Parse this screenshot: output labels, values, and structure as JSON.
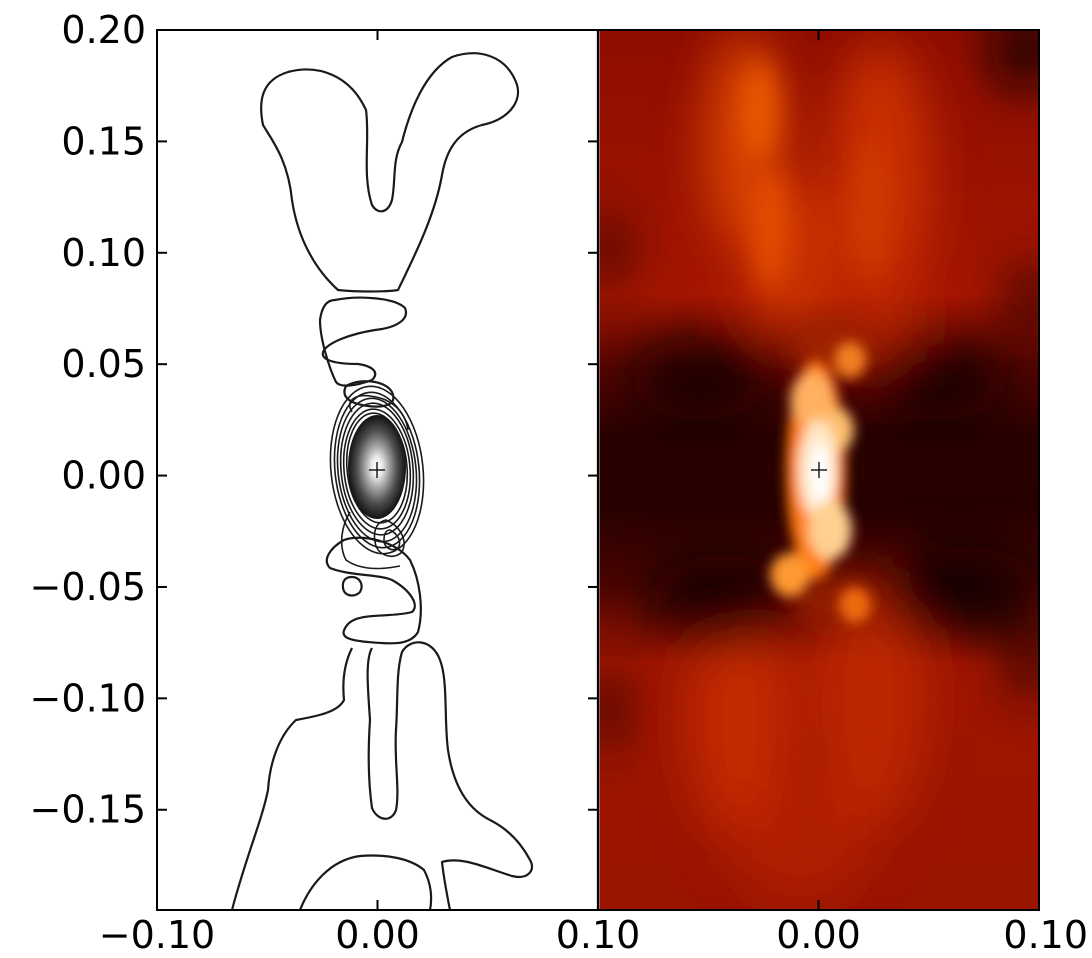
{
  "chart_data": [
    {
      "type": "contour",
      "panel": "left",
      "xlim": [
        -0.1,
        0.1
      ],
      "ylim": [
        -0.195,
        0.2
      ],
      "yticks": [
        0.2,
        0.15,
        0.1,
        0.05,
        0.0,
        -0.05,
        -0.1,
        -0.15
      ],
      "ytick_labels": [
        "0.20",
        "0.15",
        "0.10",
        "0.05",
        "0.00",
        "−0.05",
        "−0.10",
        "−0.15"
      ],
      "xticks": [
        -0.1,
        0.0,
        0.1
      ],
      "xtick_labels": [
        "−0.10",
        "0.00",
        "0.10"
      ],
      "center_marker": {
        "x": 0.0,
        "y": 0.0,
        "symbol": "+"
      },
      "core_contour_levels": 12,
      "line_color": "#1a1a1a",
      "grid": false
    },
    {
      "type": "heatmap",
      "panel": "right",
      "colormap": "hot",
      "xlim": [
        -0.1,
        0.1
      ],
      "ylim": [
        -0.195,
        0.2
      ],
      "xticks": [
        0.0,
        0.1
      ],
      "xtick_labels": [
        "0.00",
        "0.10"
      ],
      "center_marker": {
        "x": 0.0,
        "y": 0.0,
        "symbol": "+"
      },
      "colors": {
        "low": "#130000",
        "mid": "#b81c00",
        "high": "#fff6e4"
      },
      "grid": false
    }
  ]
}
